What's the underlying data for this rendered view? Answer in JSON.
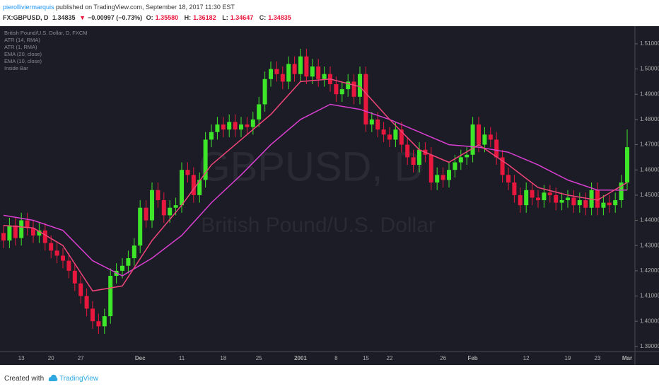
{
  "header": {
    "author": "pierolliviermarquis",
    "published": "published on TradingView.com, September 18, 2017 11:30 EST",
    "symbol": "FX:GBPUSD, D",
    "last": "1.34835",
    "arrow": "▼",
    "change": "−0.00997 (−0.73%)",
    "ohlc": [
      {
        "label": "O:",
        "value": "1.35580"
      },
      {
        "label": "H:",
        "value": "1.36182"
      },
      {
        "label": "L:",
        "value": "1.34647"
      },
      {
        "label": "C:",
        "value": "1.34835"
      }
    ]
  },
  "footer": {
    "created": "Created with",
    "brand": "TradingView"
  },
  "chart_data": {
    "type": "candlestick",
    "legend": [
      "British Pound/U.S. Dollar, D, FXCM",
      "ATR (14, RMA)",
      "ATR (1, RMA)",
      "EMA (20, close)",
      "EMA (10, close)",
      "Inside Bar"
    ],
    "watermark": [
      "GBPUSD, D",
      "British Pound/U.S. Dollar"
    ],
    "up_color": "#3ee62a",
    "down_color": "#e8173d",
    "ylim": [
      1.388,
      1.5167
    ],
    "yticks": [
      {
        "value": 1.39,
        "label": "1.39000"
      },
      {
        "value": 1.4,
        "label": "1.40000"
      },
      {
        "value": 1.41,
        "label": "1.41000"
      },
      {
        "value": 1.42,
        "label": "1.42000"
      },
      {
        "value": 1.43,
        "label": "1.43000"
      },
      {
        "value": 1.44,
        "label": "1.44000"
      },
      {
        "value": 1.45,
        "label": "1.45000"
      },
      {
        "value": 1.46,
        "label": "1.46000"
      },
      {
        "value": 1.47,
        "label": "1.47000"
      },
      {
        "value": 1.48,
        "label": "1.48000"
      },
      {
        "value": 1.49,
        "label": "1.49000"
      },
      {
        "value": 1.5,
        "label": "1.50000"
      },
      {
        "value": 1.51,
        "label": "1.51000"
      }
    ],
    "categories": [
      null,
      null,
      null,
      "13",
      null,
      null,
      null,
      null,
      "20",
      null,
      null,
      null,
      null,
      "27",
      null,
      null,
      null,
      null,
      null,
      null,
      null,
      null,
      null,
      "Dec",
      null,
      null,
      null,
      null,
      null,
      null,
      "11",
      null,
      null,
      null,
      null,
      null,
      null,
      "18",
      null,
      null,
      null,
      null,
      null,
      "25",
      null,
      null,
      null,
      null,
      null,
      null,
      "2001",
      null,
      null,
      null,
      null,
      null,
      "8",
      null,
      null,
      null,
      null,
      "15",
      null,
      null,
      null,
      "22",
      null,
      null,
      null,
      null,
      null,
      null,
      null,
      null,
      "26",
      null,
      null,
      null,
      null,
      "Feb",
      null,
      null,
      null,
      null,
      null,
      null,
      null,
      null,
      "12",
      null,
      null,
      null,
      null,
      null,
      null,
      "19",
      null,
      null,
      null,
      null,
      "23",
      null,
      null,
      null,
      null,
      "Mar"
    ],
    "open": [
      1.435,
      1.432,
      1.438,
      1.433,
      1.44,
      1.437,
      1.434,
      1.436,
      1.431,
      1.428,
      1.426,
      1.424,
      1.42,
      1.415,
      1.41,
      1.405,
      1.4,
      1.398,
      1.402,
      1.418,
      1.42,
      1.422,
      1.425,
      1.43,
      1.445,
      1.44,
      1.452,
      1.448,
      1.442,
      1.445,
      1.446,
      1.46,
      1.458,
      1.45,
      1.456,
      1.472,
      1.475,
      1.478,
      1.476,
      1.479,
      1.476,
      1.478,
      1.477,
      1.48,
      1.486,
      1.496,
      1.5,
      1.498,
      1.495,
      1.502,
      1.498,
      1.505,
      1.497,
      1.501,
      1.496,
      1.498,
      1.494,
      1.49,
      1.492,
      1.495,
      1.489,
      1.498,
      1.478,
      1.48,
      1.476,
      1.474,
      1.472,
      1.476,
      1.47,
      1.465,
      1.462,
      1.468,
      1.466,
      1.455,
      1.458,
      1.456,
      1.46,
      1.463,
      1.465,
      1.466,
      1.478,
      1.47,
      1.474,
      1.472,
      1.465,
      1.458,
      1.455,
      1.45,
      1.446,
      1.452,
      1.449,
      1.448,
      1.451,
      1.45,
      1.447,
      1.448,
      1.449,
      1.446,
      1.448,
      1.445,
      1.452,
      1.445,
      1.447,
      1.446,
      1.448,
      1.455
    ],
    "high": [
      1.438,
      1.441,
      1.441,
      1.443,
      1.443,
      1.44,
      1.439,
      1.439,
      1.434,
      1.431,
      1.429,
      1.427,
      1.423,
      1.418,
      1.413,
      1.408,
      1.403,
      1.405,
      1.421,
      1.423,
      1.425,
      1.428,
      1.433,
      1.448,
      1.448,
      1.455,
      1.455,
      1.451,
      1.448,
      1.449,
      1.463,
      1.463,
      1.461,
      1.459,
      1.475,
      1.478,
      1.481,
      1.481,
      1.482,
      1.482,
      1.481,
      1.481,
      1.483,
      1.489,
      1.499,
      1.503,
      1.503,
      1.501,
      1.505,
      1.505,
      1.508,
      1.508,
      1.504,
      1.504,
      1.501,
      1.501,
      1.497,
      1.495,
      1.498,
      1.498,
      1.501,
      1.501,
      1.483,
      1.483,
      1.479,
      1.477,
      1.479,
      1.479,
      1.473,
      1.468,
      1.471,
      1.471,
      1.469,
      1.461,
      1.461,
      1.463,
      1.466,
      1.468,
      1.469,
      1.481,
      1.481,
      1.477,
      1.477,
      1.475,
      1.468,
      1.461,
      1.458,
      1.453,
      1.455,
      1.455,
      1.452,
      1.454,
      1.454,
      1.453,
      1.451,
      1.452,
      1.452,
      1.451,
      1.451,
      1.455,
      1.455,
      1.45,
      1.45,
      1.451,
      1.458,
      1.476
    ],
    "low": [
      1.429,
      1.429,
      1.43,
      1.43,
      1.434,
      1.431,
      1.431,
      1.428,
      1.425,
      1.423,
      1.421,
      1.417,
      1.412,
      1.407,
      1.402,
      1.397,
      1.395,
      1.395,
      1.399,
      1.415,
      1.417,
      1.419,
      1.422,
      1.427,
      1.437,
      1.437,
      1.445,
      1.439,
      1.439,
      1.442,
      1.443,
      1.455,
      1.447,
      1.447,
      1.453,
      1.469,
      1.472,
      1.473,
      1.473,
      1.473,
      1.473,
      1.474,
      1.474,
      1.477,
      1.483,
      1.493,
      1.495,
      1.492,
      1.492,
      1.495,
      1.495,
      1.494,
      1.494,
      1.493,
      1.493,
      1.491,
      1.487,
      1.487,
      1.489,
      1.486,
      1.486,
      1.475,
      1.475,
      1.473,
      1.471,
      1.469,
      1.469,
      1.467,
      1.462,
      1.459,
      1.459,
      1.463,
      1.452,
      1.452,
      1.453,
      1.453,
      1.457,
      1.46,
      1.462,
      1.463,
      1.467,
      1.467,
      1.469,
      1.462,
      1.455,
      1.452,
      1.447,
      1.443,
      1.443,
      1.446,
      1.445,
      1.445,
      1.447,
      1.444,
      1.444,
      1.445,
      1.443,
      1.443,
      1.442,
      1.442,
      1.442,
      1.442,
      1.443,
      1.443,
      1.445,
      1.452
    ],
    "close": [
      1.432,
      1.438,
      1.433,
      1.44,
      1.437,
      1.434,
      1.436,
      1.431,
      1.428,
      1.426,
      1.424,
      1.42,
      1.415,
      1.41,
      1.405,
      1.4,
      1.398,
      1.402,
      1.418,
      1.42,
      1.422,
      1.425,
      1.43,
      1.445,
      1.44,
      1.452,
      1.448,
      1.442,
      1.445,
      1.446,
      1.46,
      1.458,
      1.45,
      1.456,
      1.472,
      1.475,
      1.478,
      1.476,
      1.479,
      1.476,
      1.478,
      1.477,
      1.48,
      1.486,
      1.496,
      1.5,
      1.498,
      1.495,
      1.502,
      1.498,
      1.505,
      1.497,
      1.501,
      1.496,
      1.498,
      1.494,
      1.49,
      1.492,
      1.495,
      1.489,
      1.498,
      1.478,
      1.48,
      1.476,
      1.474,
      1.472,
      1.476,
      1.47,
      1.465,
      1.462,
      1.468,
      1.466,
      1.455,
      1.458,
      1.456,
      1.46,
      1.463,
      1.465,
      1.466,
      1.478,
      1.47,
      1.474,
      1.472,
      1.465,
      1.458,
      1.455,
      1.45,
      1.446,
      1.452,
      1.449,
      1.448,
      1.451,
      1.45,
      1.447,
      1.448,
      1.449,
      1.446,
      1.448,
      1.445,
      1.452,
      1.445,
      1.447,
      1.446,
      1.448,
      1.455,
      1.469
    ],
    "lines": [
      {
        "name": "EMA (20, close)",
        "color": "#d93fd0",
        "x": [
          0,
          5,
          10,
          15,
          20,
          25,
          30,
          35,
          40,
          45,
          50,
          55,
          60,
          65,
          70,
          75,
          80,
          85,
          90,
          95,
          100,
          105
        ],
        "values": [
          1.442,
          1.44,
          1.436,
          1.424,
          1.418,
          1.425,
          1.434,
          1.447,
          1.458,
          1.47,
          1.48,
          1.486,
          1.484,
          1.48,
          1.475,
          1.47,
          1.469,
          1.467,
          1.462,
          1.456,
          1.452,
          1.452
        ]
      },
      {
        "name": "EMA (10, close)",
        "color": "#f0457a",
        "x": [
          0,
          5,
          10,
          15,
          20,
          25,
          30,
          35,
          40,
          45,
          50,
          55,
          60,
          65,
          70,
          75,
          80,
          85,
          90,
          95,
          100,
          105
        ],
        "values": [
          1.438,
          1.437,
          1.43,
          1.412,
          1.414,
          1.432,
          1.446,
          1.462,
          1.472,
          1.482,
          1.495,
          1.496,
          1.493,
          1.48,
          1.468,
          1.463,
          1.47,
          1.462,
          1.453,
          1.45,
          1.448,
          1.455
        ]
      }
    ]
  }
}
